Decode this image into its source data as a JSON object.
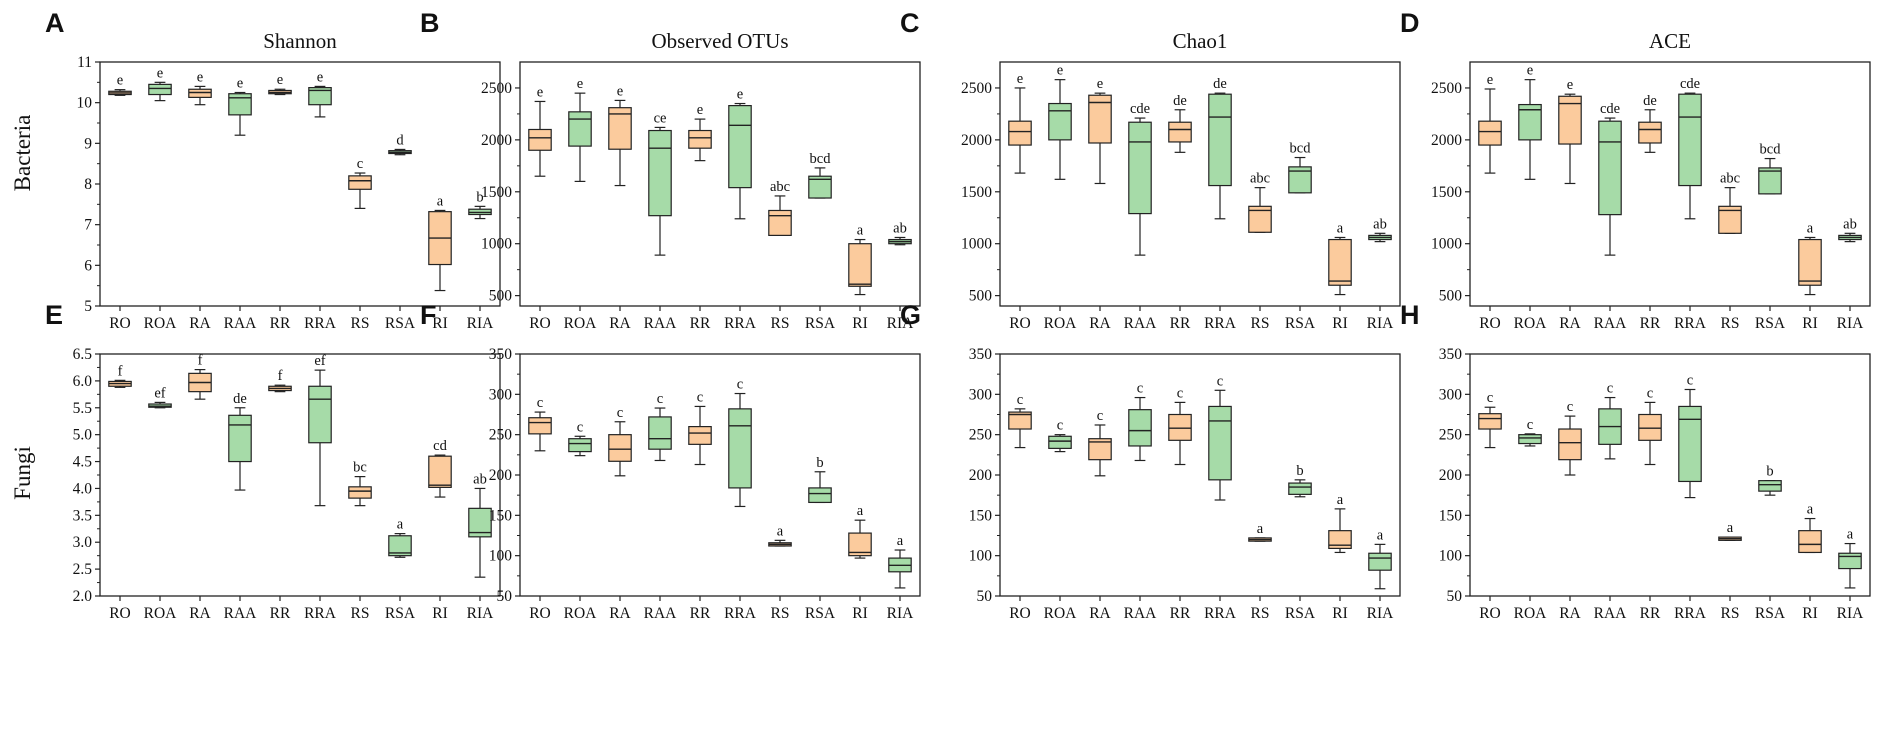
{
  "figure": {
    "row_labels": [
      "Bacteria",
      "Fungi"
    ],
    "colors": {
      "orange": "#FBCB9D",
      "green": "#A6DBA8",
      "stroke": "#222222"
    }
  },
  "chart_data": [
    {
      "id": "A",
      "type": "box",
      "row": "Bacteria",
      "title": "Shannon",
      "categories": [
        "RO",
        "ROA",
        "RA",
        "RAA",
        "RR",
        "RRA",
        "RS",
        "RSA",
        "RI",
        "RIA"
      ],
      "ylim": [
        5,
        11
      ],
      "yticks": [
        5,
        6,
        7,
        8,
        9,
        10,
        11
      ],
      "boxes": [
        {
          "min": 10.18,
          "q1": 10.2,
          "median": 10.24,
          "q3": 10.28,
          "max": 10.32,
          "sig": "e",
          "color": "orange"
        },
        {
          "min": 10.05,
          "q1": 10.2,
          "median": 10.35,
          "q3": 10.45,
          "max": 10.5,
          "sig": "e",
          "color": "green"
        },
        {
          "min": 9.95,
          "q1": 10.13,
          "median": 10.25,
          "q3": 10.33,
          "max": 10.4,
          "sig": "e",
          "color": "orange"
        },
        {
          "min": 9.2,
          "q1": 9.7,
          "median": 10.12,
          "q3": 10.22,
          "max": 10.25,
          "sig": "e",
          "color": "green"
        },
        {
          "min": 10.2,
          "q1": 10.22,
          "median": 10.25,
          "q3": 10.3,
          "max": 10.33,
          "sig": "e",
          "color": "orange"
        },
        {
          "min": 9.65,
          "q1": 9.95,
          "median": 10.3,
          "q3": 10.37,
          "max": 10.4,
          "sig": "e",
          "color": "green"
        },
        {
          "min": 7.4,
          "q1": 7.87,
          "median": 8.08,
          "q3": 8.2,
          "max": 8.27,
          "sig": "c",
          "color": "orange"
        },
        {
          "min": 8.72,
          "q1": 8.75,
          "median": 8.78,
          "q3": 8.82,
          "max": 8.85,
          "sig": "d",
          "color": "green"
        },
        {
          "min": 5.38,
          "q1": 6.02,
          "median": 6.67,
          "q3": 7.32,
          "max": 7.35,
          "sig": "a",
          "color": "orange"
        },
        {
          "min": 7.15,
          "q1": 7.25,
          "median": 7.3,
          "q3": 7.38,
          "max": 7.45,
          "sig": "b",
          "color": "green"
        }
      ]
    },
    {
      "id": "B",
      "type": "box",
      "row": "Bacteria",
      "title": "Observed OTUs",
      "categories": [
        "RO",
        "ROA",
        "RA",
        "RAA",
        "RR",
        "RRA",
        "RS",
        "RSA",
        "RI",
        "RIA"
      ],
      "ylim": [
        400,
        2750
      ],
      "yticks": [
        500,
        1000,
        1500,
        2000,
        2500
      ],
      "boxes": [
        {
          "min": 1650,
          "q1": 1900,
          "median": 2020,
          "q3": 2100,
          "max": 2370,
          "sig": "e",
          "color": "orange"
        },
        {
          "min": 1600,
          "q1": 1940,
          "median": 2200,
          "q3": 2270,
          "max": 2450,
          "sig": "e",
          "color": "green"
        },
        {
          "min": 1560,
          "q1": 1910,
          "median": 2250,
          "q3": 2310,
          "max": 2380,
          "sig": "e",
          "color": "orange"
        },
        {
          "min": 890,
          "q1": 1270,
          "median": 1920,
          "q3": 2090,
          "max": 2120,
          "sig": "ce",
          "color": "green"
        },
        {
          "min": 1800,
          "q1": 1920,
          "median": 2020,
          "q3": 2090,
          "max": 2200,
          "sig": "e",
          "color": "orange"
        },
        {
          "min": 1240,
          "q1": 1540,
          "median": 2140,
          "q3": 2330,
          "max": 2350,
          "sig": "e",
          "color": "green"
        },
        {
          "min": 1080,
          "q1": 1080,
          "median": 1270,
          "q3": 1320,
          "max": 1460,
          "sig": "abc",
          "color": "orange"
        },
        {
          "min": 1440,
          "q1": 1440,
          "median": 1620,
          "q3": 1650,
          "max": 1730,
          "sig": "bcd",
          "color": "green"
        },
        {
          "min": 510,
          "q1": 590,
          "median": 610,
          "q3": 1000,
          "max": 1040,
          "sig": "a",
          "color": "orange"
        },
        {
          "min": 990,
          "q1": 1000,
          "median": 1020,
          "q3": 1040,
          "max": 1060,
          "sig": "ab",
          "color": "green"
        }
      ]
    },
    {
      "id": "C",
      "type": "box",
      "row": "Bacteria",
      "title": "Chao1",
      "categories": [
        "RO",
        "ROA",
        "RA",
        "RAA",
        "RR",
        "RRA",
        "RS",
        "RSA",
        "RI",
        "RIA"
      ],
      "ylim": [
        400,
        2750
      ],
      "yticks": [
        500,
        1000,
        1500,
        2000,
        2500
      ],
      "boxes": [
        {
          "min": 1680,
          "q1": 1950,
          "median": 2080,
          "q3": 2180,
          "max": 2500,
          "sig": "e",
          "color": "orange"
        },
        {
          "min": 1620,
          "q1": 2000,
          "median": 2280,
          "q3": 2350,
          "max": 2580,
          "sig": "e",
          "color": "green"
        },
        {
          "min": 1580,
          "q1": 1970,
          "median": 2360,
          "q3": 2430,
          "max": 2450,
          "sig": "e",
          "color": "orange"
        },
        {
          "min": 890,
          "q1": 1290,
          "median": 1980,
          "q3": 2170,
          "max": 2210,
          "sig": "cde",
          "color": "green"
        },
        {
          "min": 1880,
          "q1": 1980,
          "median": 2100,
          "q3": 2170,
          "max": 2290,
          "sig": "de",
          "color": "orange"
        },
        {
          "min": 1240,
          "q1": 1560,
          "median": 2220,
          "q3": 2440,
          "max": 2450,
          "sig": "de",
          "color": "green"
        },
        {
          "min": 1110,
          "q1": 1110,
          "median": 1320,
          "q3": 1360,
          "max": 1540,
          "sig": "abc",
          "color": "orange"
        },
        {
          "min": 1490,
          "q1": 1490,
          "median": 1700,
          "q3": 1740,
          "max": 1830,
          "sig": "bcd",
          "color": "green"
        },
        {
          "min": 510,
          "q1": 600,
          "median": 640,
          "q3": 1040,
          "max": 1060,
          "sig": "a",
          "color": "orange"
        },
        {
          "min": 1020,
          "q1": 1040,
          "median": 1060,
          "q3": 1080,
          "max": 1100,
          "sig": "ab",
          "color": "green"
        }
      ]
    },
    {
      "id": "D",
      "type": "box",
      "row": "Bacteria",
      "title": "ACE",
      "categories": [
        "RO",
        "ROA",
        "RA",
        "RAA",
        "RR",
        "RRA",
        "RS",
        "RSA",
        "RI",
        "RIA"
      ],
      "ylim": [
        400,
        2750
      ],
      "yticks": [
        500,
        1000,
        1500,
        2000,
        2500
      ],
      "boxes": [
        {
          "min": 1680,
          "q1": 1950,
          "median": 2080,
          "q3": 2180,
          "max": 2490,
          "sig": "e",
          "color": "orange"
        },
        {
          "min": 1620,
          "q1": 2000,
          "median": 2290,
          "q3": 2340,
          "max": 2580,
          "sig": "e",
          "color": "green"
        },
        {
          "min": 1580,
          "q1": 1960,
          "median": 2350,
          "q3": 2420,
          "max": 2440,
          "sig": "e",
          "color": "orange"
        },
        {
          "min": 890,
          "q1": 1280,
          "median": 1980,
          "q3": 2180,
          "max": 2210,
          "sig": "cde",
          "color": "green"
        },
        {
          "min": 1880,
          "q1": 1970,
          "median": 2100,
          "q3": 2170,
          "max": 2290,
          "sig": "de",
          "color": "orange"
        },
        {
          "min": 1240,
          "q1": 1560,
          "median": 2220,
          "q3": 2440,
          "max": 2450,
          "sig": "cde",
          "color": "green"
        },
        {
          "min": 1100,
          "q1": 1100,
          "median": 1320,
          "q3": 1360,
          "max": 1540,
          "sig": "abc",
          "color": "orange"
        },
        {
          "min": 1480,
          "q1": 1480,
          "median": 1700,
          "q3": 1730,
          "max": 1820,
          "sig": "bcd",
          "color": "green"
        },
        {
          "min": 510,
          "q1": 600,
          "median": 640,
          "q3": 1040,
          "max": 1060,
          "sig": "a",
          "color": "orange"
        },
        {
          "min": 1020,
          "q1": 1040,
          "median": 1060,
          "q3": 1080,
          "max": 1100,
          "sig": "ab",
          "color": "green"
        }
      ]
    },
    {
      "id": "E",
      "type": "box",
      "row": "Fungi",
      "title": "",
      "categories": [
        "RO",
        "ROA",
        "RA",
        "RAA",
        "RR",
        "RRA",
        "RS",
        "RSA",
        "RI",
        "RIA"
      ],
      "ylim": [
        2.0,
        6.5
      ],
      "yticks": [
        2.0,
        2.5,
        3.0,
        3.5,
        4.0,
        4.5,
        5.0,
        5.5,
        6.0,
        6.5
      ],
      "boxes": [
        {
          "min": 5.88,
          "q1": 5.9,
          "median": 5.95,
          "q3": 5.99,
          "max": 6.01,
          "sig": "f",
          "color": "orange"
        },
        {
          "min": 5.5,
          "q1": 5.51,
          "median": 5.53,
          "q3": 5.57,
          "max": 5.6,
          "sig": "ef",
          "color": "green"
        },
        {
          "min": 5.66,
          "q1": 5.8,
          "median": 5.97,
          "q3": 6.14,
          "max": 6.21,
          "sig": "f",
          "color": "orange"
        },
        {
          "min": 3.97,
          "q1": 4.5,
          "median": 5.18,
          "q3": 5.36,
          "max": 5.5,
          "sig": "de",
          "color": "green"
        },
        {
          "min": 5.8,
          "q1": 5.82,
          "median": 5.86,
          "q3": 5.9,
          "max": 5.92,
          "sig": "f",
          "color": "orange"
        },
        {
          "min": 3.68,
          "q1": 4.85,
          "median": 5.66,
          "q3": 5.9,
          "max": 6.2,
          "sig": "ef",
          "color": "green"
        },
        {
          "min": 3.68,
          "q1": 3.82,
          "median": 3.95,
          "q3": 4.03,
          "max": 4.22,
          "sig": "bc",
          "color": "orange"
        },
        {
          "min": 2.72,
          "q1": 2.75,
          "median": 2.8,
          "q3": 3.12,
          "max": 3.16,
          "sig": "a",
          "color": "green"
        },
        {
          "min": 3.84,
          "q1": 4.02,
          "median": 4.06,
          "q3": 4.6,
          "max": 4.62,
          "sig": "cd",
          "color": "orange"
        },
        {
          "min": 2.35,
          "q1": 3.1,
          "median": 3.18,
          "q3": 3.63,
          "max": 4.0,
          "sig": "ab",
          "color": "green"
        }
      ]
    },
    {
      "id": "F",
      "type": "box",
      "row": "Fungi",
      "title": "",
      "categories": [
        "RO",
        "ROA",
        "RA",
        "RAA",
        "RR",
        "RRA",
        "RS",
        "RSA",
        "RI",
        "RIA"
      ],
      "ylim": [
        50,
        350
      ],
      "yticks": [
        50,
        100,
        150,
        200,
        250,
        300,
        350
      ],
      "boxes": [
        {
          "min": 230,
          "q1": 251,
          "median": 265,
          "q3": 271,
          "max": 278,
          "sig": "c",
          "color": "orange"
        },
        {
          "min": 224,
          "q1": 229,
          "median": 239,
          "q3": 245,
          "max": 248,
          "sig": "c",
          "color": "green"
        },
        {
          "min": 199,
          "q1": 217,
          "median": 232,
          "q3": 250,
          "max": 266,
          "sig": "c",
          "color": "orange"
        },
        {
          "min": 218,
          "q1": 232,
          "median": 245,
          "q3": 272,
          "max": 283,
          "sig": "c",
          "color": "green"
        },
        {
          "min": 213,
          "q1": 238,
          "median": 252,
          "q3": 260,
          "max": 285,
          "sig": "c",
          "color": "orange"
        },
        {
          "min": 161,
          "q1": 184,
          "median": 261,
          "q3": 282,
          "max": 301,
          "sig": "c",
          "color": "green"
        },
        {
          "min": 112,
          "q1": 112,
          "median": 114,
          "q3": 116,
          "max": 119,
          "sig": "a",
          "color": "orange"
        },
        {
          "min": 166,
          "q1": 166,
          "median": 177,
          "q3": 184,
          "max": 204,
          "sig": "b",
          "color": "green"
        },
        {
          "min": 97,
          "q1": 100,
          "median": 104,
          "q3": 128,
          "max": 144,
          "sig": "a",
          "color": "orange"
        },
        {
          "min": 60,
          "q1": 80,
          "median": 88,
          "q3": 97,
          "max": 107,
          "sig": "a",
          "color": "green"
        }
      ]
    },
    {
      "id": "G",
      "type": "box",
      "row": "Fungi",
      "title": "",
      "categories": [
        "RO",
        "ROA",
        "RA",
        "RAA",
        "RR",
        "RRA",
        "RS",
        "RSA",
        "RI",
        "RIA"
      ],
      "ylim": [
        50,
        350
      ],
      "yticks": [
        50,
        100,
        150,
        200,
        250,
        300,
        350
      ],
      "boxes": [
        {
          "min": 234,
          "q1": 257,
          "median": 275,
          "q3": 278,
          "max": 282,
          "sig": "c",
          "color": "orange"
        },
        {
          "min": 229,
          "q1": 233,
          "median": 242,
          "q3": 248,
          "max": 250,
          "sig": "c",
          "color": "green"
        },
        {
          "min": 199,
          "q1": 219,
          "median": 241,
          "q3": 245,
          "max": 262,
          "sig": "c",
          "color": "orange"
        },
        {
          "min": 218,
          "q1": 236,
          "median": 255,
          "q3": 281,
          "max": 296,
          "sig": "c",
          "color": "green"
        },
        {
          "min": 213,
          "q1": 243,
          "median": 258,
          "q3": 275,
          "max": 290,
          "sig": "c",
          "color": "orange"
        },
        {
          "min": 169,
          "q1": 194,
          "median": 267,
          "q3": 285,
          "max": 305,
          "sig": "c",
          "color": "green"
        },
        {
          "min": 118,
          "q1": 118,
          "median": 120,
          "q3": 122,
          "max": 122,
          "sig": "a",
          "color": "orange"
        },
        {
          "min": 173,
          "q1": 176,
          "median": 185,
          "q3": 190,
          "max": 194,
          "sig": "b",
          "color": "green"
        },
        {
          "min": 104,
          "q1": 109,
          "median": 113,
          "q3": 131,
          "max": 158,
          "sig": "a",
          "color": "orange"
        },
        {
          "min": 59,
          "q1": 82,
          "median": 97,
          "q3": 103,
          "max": 114,
          "sig": "a",
          "color": "green"
        }
      ]
    },
    {
      "id": "H",
      "type": "box",
      "row": "Fungi",
      "title": "",
      "categories": [
        "RO",
        "ROA",
        "RA",
        "RAA",
        "RR",
        "RRA",
        "RS",
        "RSA",
        "RI",
        "RIA"
      ],
      "ylim": [
        50,
        350
      ],
      "yticks": [
        50,
        100,
        150,
        200,
        250,
        300,
        350
      ],
      "boxes": [
        {
          "min": 234,
          "q1": 257,
          "median": 270,
          "q3": 276,
          "max": 284,
          "sig": "c",
          "color": "orange"
        },
        {
          "min": 236,
          "q1": 239,
          "median": 246,
          "q3": 250,
          "max": 251,
          "sig": "c",
          "color": "green"
        },
        {
          "min": 200,
          "q1": 219,
          "median": 240,
          "q3": 257,
          "max": 273,
          "sig": "c",
          "color": "orange"
        },
        {
          "min": 220,
          "q1": 238,
          "median": 260,
          "q3": 282,
          "max": 296,
          "sig": "c",
          "color": "green"
        },
        {
          "min": 213,
          "q1": 243,
          "median": 258,
          "q3": 275,
          "max": 290,
          "sig": "c",
          "color": "orange"
        },
        {
          "min": 172,
          "q1": 192,
          "median": 269,
          "q3": 285,
          "max": 306,
          "sig": "c",
          "color": "green"
        },
        {
          "min": 119,
          "q1": 119,
          "median": 121,
          "q3": 123,
          "max": 123,
          "sig": "a",
          "color": "orange"
        },
        {
          "min": 175,
          "q1": 180,
          "median": 188,
          "q3": 193,
          "max": 193,
          "sig": "b",
          "color": "green"
        },
        {
          "min": 104,
          "q1": 104,
          "median": 114,
          "q3": 131,
          "max": 146,
          "sig": "a",
          "color": "orange"
        },
        {
          "min": 60,
          "q1": 84,
          "median": 99,
          "q3": 103,
          "max": 115,
          "sig": "a",
          "color": "green"
        }
      ]
    }
  ]
}
